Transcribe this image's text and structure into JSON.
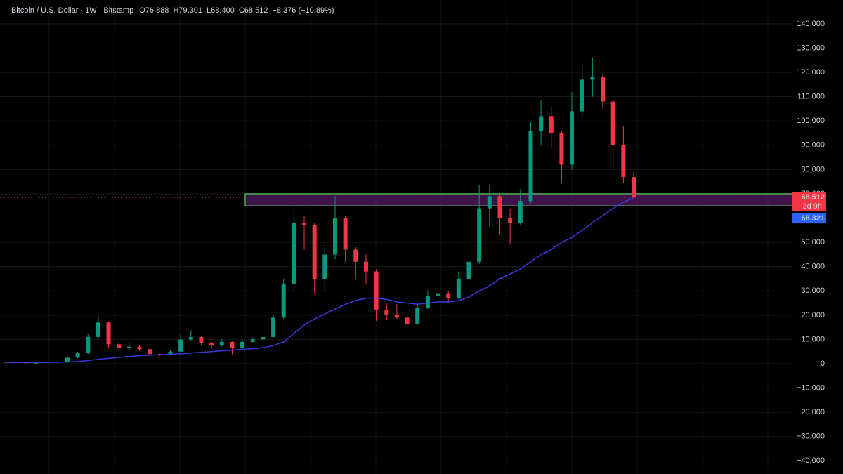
{
  "chart_data": {
    "type": "candlestick",
    "header": {
      "symbol": "Bitcoin / U.S. Dollar · 1W · Bitstamp",
      "ohlc": [
        {
          "key": "O",
          "value": "76,888"
        },
        {
          "key": "H",
          "value": "79,301"
        },
        {
          "key": "L",
          "value": "68,400"
        },
        {
          "key": "C",
          "value": "68,512"
        }
      ],
      "change": "−8,376 (−10.89%)"
    },
    "ylim": [
      -45400,
      149800
    ],
    "yticks": [
      {
        "value": -40000,
        "label": "−40,000"
      },
      {
        "value": -30000,
        "label": "−30,000"
      },
      {
        "value": -20000,
        "label": "−20,000"
      },
      {
        "value": -10000,
        "label": "−10,000"
      },
      0,
      {
        "value": 10000,
        "label": "10,000"
      },
      {
        "value": 20000,
        "label": "20,000"
      },
      {
        "value": 30000,
        "label": "30,000"
      },
      {
        "value": 40000,
        "label": "40,000"
      },
      {
        "value": 50000,
        "label": "50,000"
      },
      {
        "value": 60000,
        "label": "60,000"
      },
      {
        "value": 70000,
        "label": "70,000"
      },
      {
        "value": 80000,
        "label": "80,000"
      },
      {
        "value": 90000,
        "label": "90,000"
      },
      {
        "value": 100000,
        "label": "100,000"
      },
      {
        "value": 110000,
        "label": "110,000"
      },
      {
        "value": 120000,
        "label": "120,000"
      },
      {
        "value": 130000,
        "label": "130,000"
      },
      {
        "value": 140000,
        "label": "140,000"
      }
    ],
    "grid": true,
    "up_color": "#089981",
    "down_color": "#f23645",
    "ohlc": {
      "open": [
        700,
        600,
        500,
        400,
        400,
        600,
        900,
        2500,
        4500,
        11000,
        17000,
        8000,
        6500,
        7000,
        6000,
        4000,
        3800,
        5000,
        10000,
        11000,
        8500,
        7500,
        9000,
        6500,
        9000,
        10000,
        11000,
        19000,
        33000,
        58000,
        57000,
        35000,
        45000,
        60000,
        47000,
        42000,
        38000,
        22000,
        20000,
        19000,
        16500,
        23000,
        28000,
        29000,
        27000,
        35000,
        42000,
        64000,
        69000,
        60000,
        58000,
        67000,
        96000,
        102000,
        95000,
        82000,
        104000,
        117000,
        118000,
        108000,
        90000,
        76888
      ],
      "high": [
        800,
        650,
        550,
        480,
        700,
        1000,
        2900,
        5000,
        12500,
        19800,
        17500,
        9000,
        8500,
        7600,
        6400,
        4200,
        5500,
        12000,
        13800,
        11500,
        9000,
        10200,
        9200,
        9800,
        10800,
        12000,
        20000,
        35000,
        64800,
        61000,
        58000,
        50000,
        69000,
        61000,
        48000,
        45000,
        39000,
        25000,
        24500,
        21000,
        24000,
        30000,
        31800,
        30000,
        38000,
        44000,
        73800,
        73700,
        70000,
        64000,
        72000,
        99500,
        108300,
        106000,
        96000,
        111900,
        123200,
        126200,
        119000,
        109000,
        97900,
        79301
      ],
      "low": [
        500,
        420,
        300,
        200,
        350,
        550,
        800,
        2300,
        4000,
        10000,
        6500,
        5800,
        5900,
        5500,
        3200,
        3300,
        3500,
        4800,
        9500,
        7500,
        6600,
        7000,
        3900,
        6200,
        8800,
        9600,
        10500,
        18500,
        30000,
        47000,
        29000,
        29500,
        43000,
        42000,
        35000,
        33000,
        17600,
        18000,
        18500,
        15500,
        16200,
        22500,
        25000,
        24900,
        26500,
        34000,
        41000,
        56500,
        53000,
        49000,
        57000,
        66000,
        90000,
        89000,
        74500,
        80000,
        102000,
        110000,
        105000,
        80600,
        74500,
        68400
      ],
      "close": [
        600,
        500,
        400,
        400,
        600,
        900,
        2500,
        4500,
        11000,
        17000,
        8000,
        6500,
        7000,
        6000,
        4000,
        3800,
        5000,
        10000,
        11000,
        8500,
        7500,
        9000,
        6500,
        9000,
        10000,
        11000,
        19000,
        33000,
        58000,
        57000,
        35000,
        45000,
        60000,
        47000,
        42000,
        38000,
        22000,
        20000,
        19000,
        16500,
        23000,
        28000,
        29000,
        27000,
        35000,
        42000,
        64000,
        69000,
        60000,
        58000,
        67000,
        96000,
        102000,
        95000,
        82000,
        104000,
        117000,
        118000,
        108000,
        90000,
        76888,
        68512
      ]
    },
    "moving_average": {
      "color": "#3a3ae0",
      "values": [
        500,
        500,
        500,
        500,
        550,
        600,
        700,
        900,
        1300,
        1800,
        2200,
        2600,
        3000,
        3300,
        3500,
        3700,
        3900,
        4100,
        4400,
        4700,
        5000,
        5300,
        5600,
        5900,
        6200,
        6600,
        7500,
        9000,
        12500,
        16000,
        18500,
        20500,
        22500,
        24500,
        26000,
        27000,
        27000,
        26500,
        25500,
        25000,
        24500,
        25000,
        25500,
        25500,
        26000,
        27500,
        30000,
        32000,
        35000,
        37000,
        39000,
        42000,
        45000,
        47000,
        50000,
        52000,
        55000,
        58000,
        61000,
        64000,
        66500,
        68321
      ]
    },
    "zone": {
      "range": [
        65000,
        70000
      ],
      "fill": "#4a1657",
      "border": "#4caf50"
    },
    "price_label": {
      "value": 68512,
      "label": "68,512",
      "countdown": "3d 9h",
      "color": "#f23645"
    },
    "ma_label": {
      "value": 68321,
      "label": "68,321",
      "color": "#2962ff"
    }
  }
}
